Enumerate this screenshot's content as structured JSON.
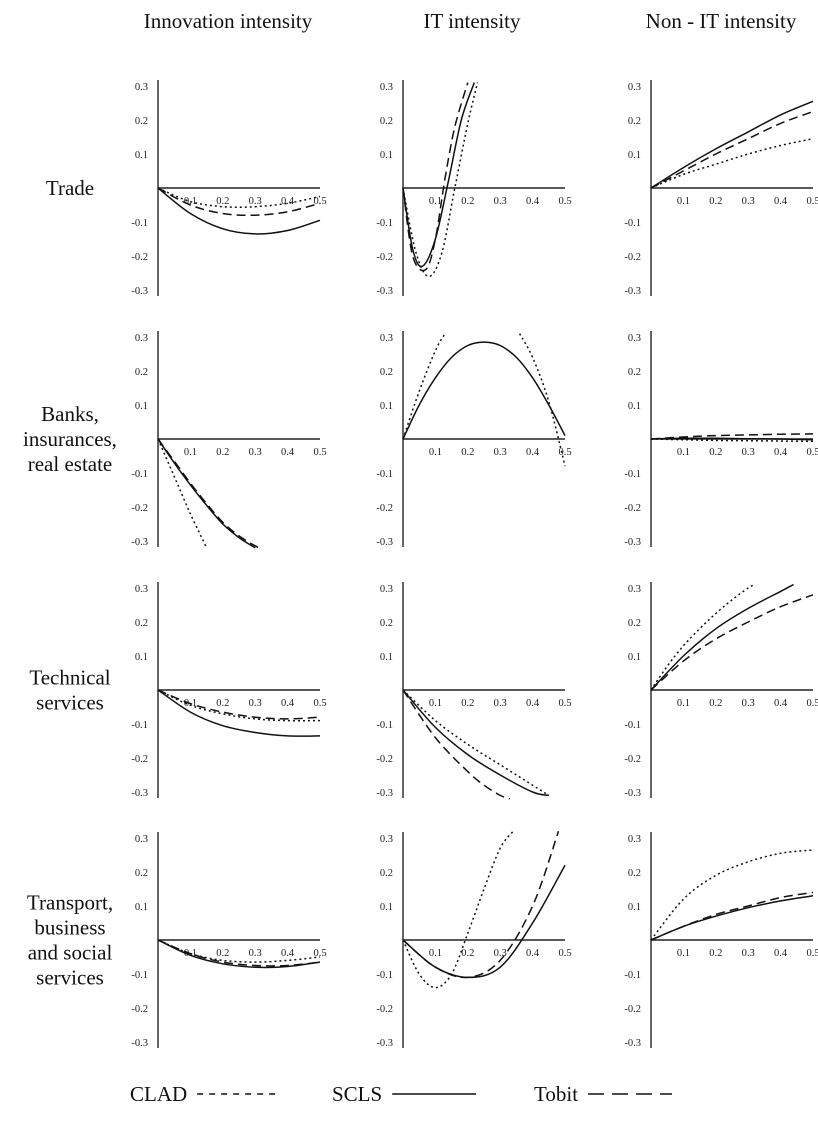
{
  "columns": [
    "Innovation intensity",
    "IT intensity",
    "Non - IT intensity"
  ],
  "rows": [
    [
      "Trade"
    ],
    [
      "Banks,",
      "insurances,",
      "real estate"
    ],
    [
      "Technical",
      "services"
    ],
    [
      "Transport,",
      "business",
      "and social",
      "services"
    ]
  ],
  "legend": [
    {
      "name": "CLAD",
      "label": "CLAD",
      "style": "dotted"
    },
    {
      "name": "SCLS",
      "label": "SCLS",
      "style": "solid"
    },
    {
      "name": "Tobit",
      "label": "Tobit",
      "style": "dashed"
    }
  ],
  "chart_data": [
    {
      "type": "line",
      "row": "Trade",
      "column": "Innovation intensity",
      "xlim": [
        0,
        0.5
      ],
      "ylim": [
        -0.3,
        0.3
      ],
      "x_ticks": [
        "0.1",
        "0.2",
        "0.3",
        "0.4",
        "0.5"
      ],
      "y_ticks": [
        "0.3",
        "0.2",
        "0.1",
        "-0.1",
        "-0.2",
        "-0.3"
      ],
      "series": [
        {
          "name": "CLAD",
          "x": [
            0,
            0.1,
            0.2,
            0.3,
            0.4,
            0.5
          ],
          "y": [
            0,
            -0.04,
            -0.055,
            -0.055,
            -0.045,
            -0.025
          ]
        },
        {
          "name": "SCLS",
          "x": [
            0,
            0.1,
            0.2,
            0.3,
            0.4,
            0.5
          ],
          "y": [
            0,
            -0.075,
            -0.12,
            -0.135,
            -0.125,
            -0.095
          ]
        },
        {
          "name": "Tobit",
          "x": [
            0,
            0.1,
            0.2,
            0.3,
            0.4,
            0.5
          ],
          "y": [
            0,
            -0.05,
            -0.075,
            -0.08,
            -0.07,
            -0.045
          ]
        }
      ]
    },
    {
      "type": "line",
      "row": "Trade",
      "column": "IT intensity",
      "xlim": [
        0,
        0.5
      ],
      "ylim": [
        -0.3,
        0.3
      ],
      "x_ticks": [
        "0.1",
        "0.2",
        "0.3",
        "0.4",
        "0.5"
      ],
      "y_ticks": [
        "0.3",
        "0.2",
        "0.1",
        "-0.1",
        "-0.2",
        "-0.3"
      ],
      "series": [
        {
          "name": "CLAD",
          "x": [
            0,
            0.04,
            0.08,
            0.12,
            0.16,
            0.2,
            0.23
          ],
          "y": [
            0,
            -0.19,
            -0.26,
            -0.19,
            0,
            0.19,
            0.31
          ]
        },
        {
          "name": "SCLS",
          "x": [
            0,
            0.03,
            0.06,
            0.1,
            0.14,
            0.18,
            0.22
          ],
          "y": [
            0,
            -0.18,
            -0.23,
            -0.15,
            0.02,
            0.2,
            0.31
          ]
        },
        {
          "name": "Tobit",
          "x": [
            0,
            0.03,
            0.07,
            0.1,
            0.13,
            0.16,
            0.2
          ],
          "y": [
            0,
            -0.2,
            -0.24,
            -0.15,
            0.03,
            0.18,
            0.31
          ]
        }
      ]
    },
    {
      "type": "line",
      "row": "Trade",
      "column": "Non - IT intensity",
      "xlim": [
        0,
        0.5
      ],
      "ylim": [
        -0.3,
        0.3
      ],
      "x_ticks": [
        "0.1",
        "0.2",
        "0.3",
        "0.4",
        "0.5"
      ],
      "y_ticks": [
        "0.3",
        "0.2",
        "0.1",
        "-0.1",
        "-0.2",
        "-0.3"
      ],
      "series": [
        {
          "name": "CLAD",
          "x": [
            0,
            0.1,
            0.2,
            0.3,
            0.4,
            0.5
          ],
          "y": [
            0,
            0.04,
            0.07,
            0.1,
            0.125,
            0.145
          ]
        },
        {
          "name": "SCLS",
          "x": [
            0,
            0.1,
            0.2,
            0.3,
            0.4,
            0.5
          ],
          "y": [
            0,
            0.06,
            0.115,
            0.165,
            0.215,
            0.255
          ]
        },
        {
          "name": "Tobit",
          "x": [
            0,
            0.1,
            0.2,
            0.3,
            0.4,
            0.5
          ],
          "y": [
            0,
            0.05,
            0.1,
            0.145,
            0.19,
            0.225
          ]
        }
      ]
    },
    {
      "type": "line",
      "row": "Banks, insurances, real estate",
      "column": "Innovation intensity",
      "xlim": [
        0,
        0.5
      ],
      "ylim": [
        -0.3,
        0.3
      ],
      "x_ticks": [
        "0.1",
        "0.2",
        "0.3",
        "0.4",
        "0.5"
      ],
      "y_ticks": [
        "0.3",
        "0.2",
        "0.1",
        "-0.1",
        "-0.2",
        "-0.3"
      ],
      "series": [
        {
          "name": "CLAD",
          "x": [
            0,
            0.05,
            0.1,
            0.15
          ],
          "y": [
            0,
            -0.11,
            -0.22,
            -0.32
          ]
        },
        {
          "name": "SCLS",
          "x": [
            0,
            0.05,
            0.1,
            0.15,
            0.2,
            0.25,
            0.3
          ],
          "y": [
            0,
            -0.07,
            -0.135,
            -0.195,
            -0.25,
            -0.29,
            -0.32
          ]
        },
        {
          "name": "Tobit",
          "x": [
            0,
            0.05,
            0.1,
            0.15,
            0.2,
            0.25,
            0.31
          ],
          "y": [
            0,
            -0.065,
            -0.13,
            -0.19,
            -0.245,
            -0.285,
            -0.32
          ]
        }
      ]
    },
    {
      "type": "line",
      "row": "Banks, insurances, real estate",
      "column": "IT intensity",
      "xlim": [
        0,
        0.5
      ],
      "ylim": [
        -0.3,
        0.3
      ],
      "x_ticks": [
        "0.1",
        "0.2",
        "0.3",
        "0.4",
        "0.5"
      ],
      "y_ticks": [
        "0.3",
        "0.2",
        "0.1",
        "-0.1",
        "-0.2",
        "-0.3"
      ],
      "series": [
        {
          "name": "CLAD",
          "x": [
            0,
            0.05,
            0.1,
            0.13
          ],
          "y": [
            0,
            0.14,
            0.26,
            0.31
          ]
        },
        {
          "name": "CLAD",
          "x": [
            0.36,
            0.4,
            0.45,
            0.5
          ],
          "y": [
            0.31,
            0.24,
            0.11,
            -0.08
          ]
        },
        {
          "name": "SCLS",
          "x": [
            0,
            0.05,
            0.1,
            0.15,
            0.2,
            0.25,
            0.3,
            0.35,
            0.4,
            0.45,
            0.5
          ],
          "y": [
            0,
            0.1,
            0.18,
            0.24,
            0.275,
            0.285,
            0.275,
            0.24,
            0.18,
            0.1,
            0.01
          ]
        }
      ]
    },
    {
      "type": "line",
      "row": "Banks, insurances, real estate",
      "column": "Non - IT intensity",
      "xlim": [
        0,
        0.5
      ],
      "ylim": [
        -0.3,
        0.3
      ],
      "x_ticks": [
        "0.1",
        "0.2",
        "0.3",
        "0.4",
        "0.5"
      ],
      "y_ticks": [
        "0.3",
        "0.2",
        "0.1",
        "-0.1",
        "-0.2",
        "-0.3"
      ],
      "series": [
        {
          "name": "CLAD",
          "x": [
            0,
            0.1,
            0.2,
            0.3,
            0.4,
            0.5
          ],
          "y": [
            0,
            -0.002,
            -0.004,
            -0.005,
            -0.006,
            -0.007
          ]
        },
        {
          "name": "SCLS",
          "x": [
            0,
            0.1,
            0.2,
            0.3,
            0.4,
            0.5
          ],
          "y": [
            0,
            0.002,
            0.002,
            0.001,
            0,
            -0.002
          ]
        },
        {
          "name": "Tobit",
          "x": [
            0,
            0.1,
            0.2,
            0.3,
            0.4,
            0.5
          ],
          "y": [
            0,
            0.006,
            0.01,
            0.012,
            0.014,
            0.015
          ]
        }
      ]
    },
    {
      "type": "line",
      "row": "Technical services",
      "column": "Innovation intensity",
      "xlim": [
        0,
        0.5
      ],
      "ylim": [
        -0.3,
        0.3
      ],
      "x_ticks": [
        "0.1",
        "0.2",
        "0.3",
        "0.4",
        "0.5"
      ],
      "y_ticks": [
        "0.3",
        "0.2",
        "0.1",
        "-0.1",
        "-0.2",
        "-0.3"
      ],
      "series": [
        {
          "name": "CLAD",
          "x": [
            0,
            0.1,
            0.2,
            0.3,
            0.4,
            0.5
          ],
          "y": [
            0,
            -0.045,
            -0.07,
            -0.085,
            -0.09,
            -0.09
          ]
        },
        {
          "name": "SCLS",
          "x": [
            0,
            0.1,
            0.2,
            0.3,
            0.4,
            0.5
          ],
          "y": [
            0,
            -0.065,
            -0.105,
            -0.125,
            -0.135,
            -0.135
          ]
        },
        {
          "name": "Tobit",
          "x": [
            0,
            0.1,
            0.2,
            0.3,
            0.4,
            0.5
          ],
          "y": [
            0,
            -0.04,
            -0.065,
            -0.08,
            -0.085,
            -0.08
          ]
        }
      ]
    },
    {
      "type": "line",
      "row": "Technical services",
      "column": "IT intensity",
      "xlim": [
        0,
        0.5
      ],
      "ylim": [
        -0.3,
        0.3
      ],
      "x_ticks": [
        "0.1",
        "0.2",
        "0.3",
        "0.4",
        "0.5"
      ],
      "y_ticks": [
        "0.3",
        "0.2",
        "0.1",
        "-0.1",
        "-0.2",
        "-0.3"
      ],
      "series": [
        {
          "name": "CLAD",
          "x": [
            0,
            0.1,
            0.2,
            0.3,
            0.4,
            0.45
          ],
          "y": [
            0,
            -0.09,
            -0.16,
            -0.22,
            -0.28,
            -0.31
          ]
        },
        {
          "name": "SCLS",
          "x": [
            0,
            0.1,
            0.2,
            0.3,
            0.4,
            0.45
          ],
          "y": [
            0,
            -0.11,
            -0.19,
            -0.25,
            -0.3,
            -0.31
          ]
        },
        {
          "name": "Tobit",
          "x": [
            0,
            0.1,
            0.2,
            0.25,
            0.3,
            0.33
          ],
          "y": [
            0,
            -0.14,
            -0.24,
            -0.28,
            -0.31,
            -0.32
          ]
        }
      ]
    },
    {
      "type": "line",
      "row": "Technical services",
      "column": "Non - IT intensity",
      "xlim": [
        0,
        0.5
      ],
      "ylim": [
        -0.3,
        0.3
      ],
      "x_ticks": [
        "0.1",
        "0.2",
        "0.3",
        "0.4",
        "0.5"
      ],
      "y_ticks": [
        "0.3",
        "0.2",
        "0.1",
        "-0.1",
        "-0.2",
        "-0.3"
      ],
      "series": [
        {
          "name": "CLAD",
          "x": [
            0,
            0.05,
            0.1,
            0.15,
            0.2,
            0.25,
            0.3,
            0.32
          ],
          "y": [
            0,
            0.07,
            0.13,
            0.18,
            0.225,
            0.265,
            0.3,
            0.31
          ]
        },
        {
          "name": "SCLS",
          "x": [
            0,
            0.1,
            0.2,
            0.3,
            0.4,
            0.44
          ],
          "y": [
            0,
            0.1,
            0.18,
            0.24,
            0.29,
            0.31
          ]
        },
        {
          "name": "Tobit",
          "x": [
            0,
            0.1,
            0.2,
            0.3,
            0.4,
            0.5
          ],
          "y": [
            0,
            0.085,
            0.15,
            0.2,
            0.245,
            0.28
          ]
        }
      ]
    },
    {
      "type": "line",
      "row": "Transport, business and social services",
      "column": "Innovation intensity",
      "xlim": [
        0,
        0.5
      ],
      "ylim": [
        -0.3,
        0.3
      ],
      "x_ticks": [
        "0.1",
        "0.2",
        "0.3",
        "0.4",
        "0.5"
      ],
      "y_ticks": [
        "0.3",
        "0.2",
        "0.1",
        "-0.1",
        "-0.2",
        "-0.3"
      ],
      "series": [
        {
          "name": "CLAD",
          "x": [
            0,
            0.1,
            0.2,
            0.3,
            0.4,
            0.5
          ],
          "y": [
            0,
            -0.04,
            -0.06,
            -0.065,
            -0.06,
            -0.05
          ]
        },
        {
          "name": "SCLS",
          "x": [
            0,
            0.1,
            0.2,
            0.3,
            0.4,
            0.5
          ],
          "y": [
            0,
            -0.045,
            -0.07,
            -0.08,
            -0.078,
            -0.065
          ]
        },
        {
          "name": "Tobit",
          "x": [
            0,
            0.1,
            0.2,
            0.3,
            0.4,
            0.5
          ],
          "y": [
            0,
            -0.04,
            -0.065,
            -0.075,
            -0.075,
            -0.065
          ]
        }
      ]
    },
    {
      "type": "line",
      "row": "Transport, business and social services",
      "column": "IT intensity",
      "xlim": [
        0,
        0.5
      ],
      "ylim": [
        -0.3,
        0.3
      ],
      "x_ticks": [
        "0.1",
        "0.2",
        "0.3",
        "0.4",
        "0.5"
      ],
      "y_ticks": [
        "0.3",
        "0.2",
        "0.1",
        "-0.1",
        "-0.2",
        "-0.3"
      ],
      "series": [
        {
          "name": "CLAD",
          "x": [
            0,
            0.05,
            0.1,
            0.15,
            0.2,
            0.25,
            0.3,
            0.34
          ],
          "y": [
            0,
            -0.1,
            -0.14,
            -0.1,
            0.02,
            0.15,
            0.27,
            0.32
          ]
        },
        {
          "name": "SCLS",
          "x": [
            0,
            0.1,
            0.2,
            0.3,
            0.4,
            0.5
          ],
          "y": [
            0,
            -0.08,
            -0.11,
            -0.08,
            0.05,
            0.22
          ]
        },
        {
          "name": "Tobit",
          "x": [
            0,
            0.1,
            0.2,
            0.3,
            0.4,
            0.48
          ],
          "y": [
            0,
            -0.08,
            -0.11,
            -0.06,
            0.1,
            0.32
          ]
        }
      ]
    },
    {
      "type": "line",
      "row": "Transport, business and social services",
      "column": "Non - IT intensity",
      "xlim": [
        0,
        0.5
      ],
      "ylim": [
        -0.3,
        0.3
      ],
      "x_ticks": [
        "0.1",
        "0.2",
        "0.3",
        "0.4",
        "0.5"
      ],
      "y_ticks": [
        "0.3",
        "0.2",
        "0.1",
        "-0.1",
        "-0.2",
        "-0.3"
      ],
      "series": [
        {
          "name": "CLAD",
          "x": [
            0,
            0.1,
            0.2,
            0.3,
            0.4,
            0.5
          ],
          "y": [
            0,
            0.12,
            0.19,
            0.23,
            0.255,
            0.265
          ]
        },
        {
          "name": "SCLS",
          "x": [
            0,
            0.1,
            0.2,
            0.3,
            0.4,
            0.5
          ],
          "y": [
            0,
            0.04,
            0.07,
            0.095,
            0.115,
            0.13
          ]
        },
        {
          "name": "Tobit",
          "x": [
            0,
            0.1,
            0.2,
            0.3,
            0.4,
            0.5
          ],
          "y": [
            0,
            0.04,
            0.075,
            0.1,
            0.125,
            0.14
          ]
        }
      ]
    }
  ]
}
